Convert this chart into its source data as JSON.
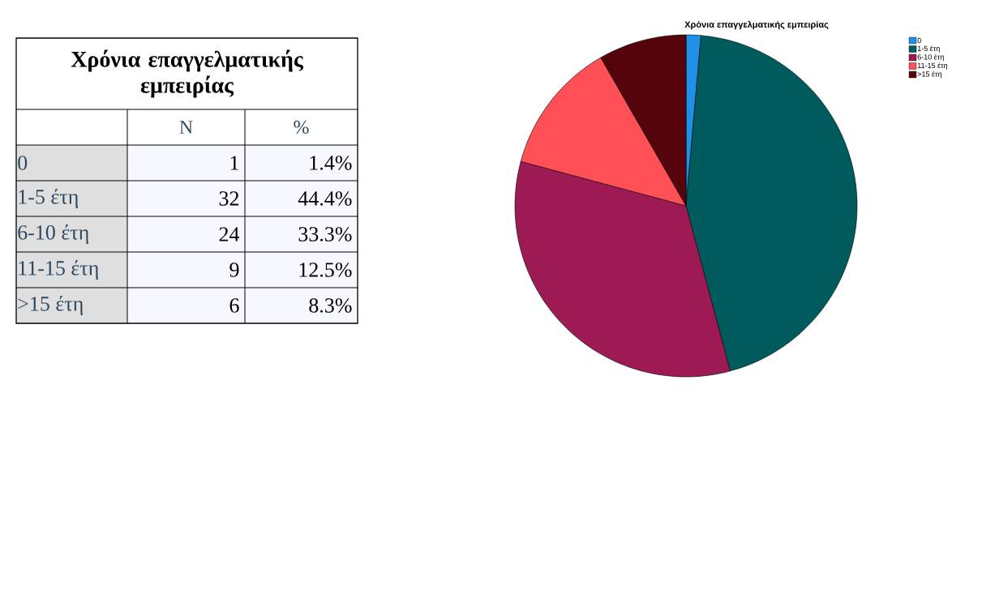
{
  "chart_data": [
    {
      "type": "other",
      "title": "Χρόνια επαγγελματικής εμπειρίας",
      "categories": [
        "0",
        "1-5 έτη",
        "6-10 έτη",
        "11-15 έτη",
        ">15 έτη"
      ],
      "data_labels": true,
      "series": [
        {
          "name": "N",
          "values": [
            1,
            32,
            24,
            9,
            6
          ]
        },
        {
          "name": "%",
          "values": [
            1.4,
            44.4,
            33.3,
            12.5,
            8.3
          ]
        }
      ]
    },
    {
      "type": "pie",
      "title": "Χρόνια επαγγελματικής εμπειρίας",
      "categories": [
        "0",
        "1-5 έτη",
        "6-10 έτη",
        "11-15 έτη",
        ">15 έτη"
      ],
      "values": [
        1.4,
        44.4,
        33.3,
        12.5,
        8.3
      ],
      "colors": [
        "#1f8fe8",
        "#005c5c",
        "#9e1a55",
        "#ff4f57",
        "#55040c"
      ],
      "legend": "top right"
    }
  ]
}
